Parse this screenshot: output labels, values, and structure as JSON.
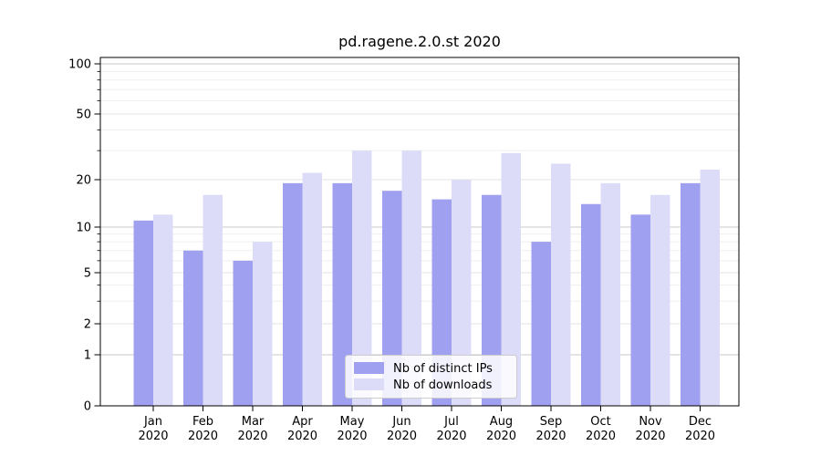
{
  "title": "pd.ragene.2.0.st 2020",
  "chart_data": {
    "type": "bar",
    "title": "pd.ragene.2.0.st 2020",
    "categories": [
      "Jan 2020",
      "Feb 2020",
      "Mar 2020",
      "Apr 2020",
      "May 2020",
      "Jun 2020",
      "Jul 2020",
      "Aug 2020",
      "Sep 2020",
      "Oct 2020",
      "Nov 2020",
      "Dec 2020"
    ],
    "x_tick_months": [
      "Jan",
      "Feb",
      "Mar",
      "Apr",
      "May",
      "Jun",
      "Jul",
      "Aug",
      "Sep",
      "Oct",
      "Nov",
      "Dec"
    ],
    "x_tick_year": "2020",
    "series": [
      {
        "name": "Nb of distinct IPs",
        "color": "#a0a0f0",
        "values": [
          11,
          7,
          6,
          19,
          19,
          17,
          15,
          16,
          8,
          14,
          12,
          19
        ]
      },
      {
        "name": "Nb of downloads",
        "color": "#dcdcf8",
        "values": [
          12,
          16,
          8,
          22,
          30,
          30,
          20,
          29,
          25,
          19,
          16,
          23
        ]
      }
    ],
    "xlabel": "",
    "ylabel": "",
    "yscale": "symlog",
    "y_ticks": [
      0,
      1,
      2,
      5,
      10,
      20,
      50,
      100
    ],
    "ylim": [
      0,
      115
    ],
    "grid": true,
    "legend_position": "lower center"
  },
  "colors": {
    "distinct_ips_bar": "#a0a0f0",
    "downloads_bar": "#dcdcf8",
    "axis": "#000000",
    "grid_decade": "#c9c9c9",
    "grid_major": "#e3e3e3",
    "grid_minor": "#efefef",
    "legend_border": "#cccccc",
    "legend_bg": "rgba(255,255,255,0.85)"
  }
}
